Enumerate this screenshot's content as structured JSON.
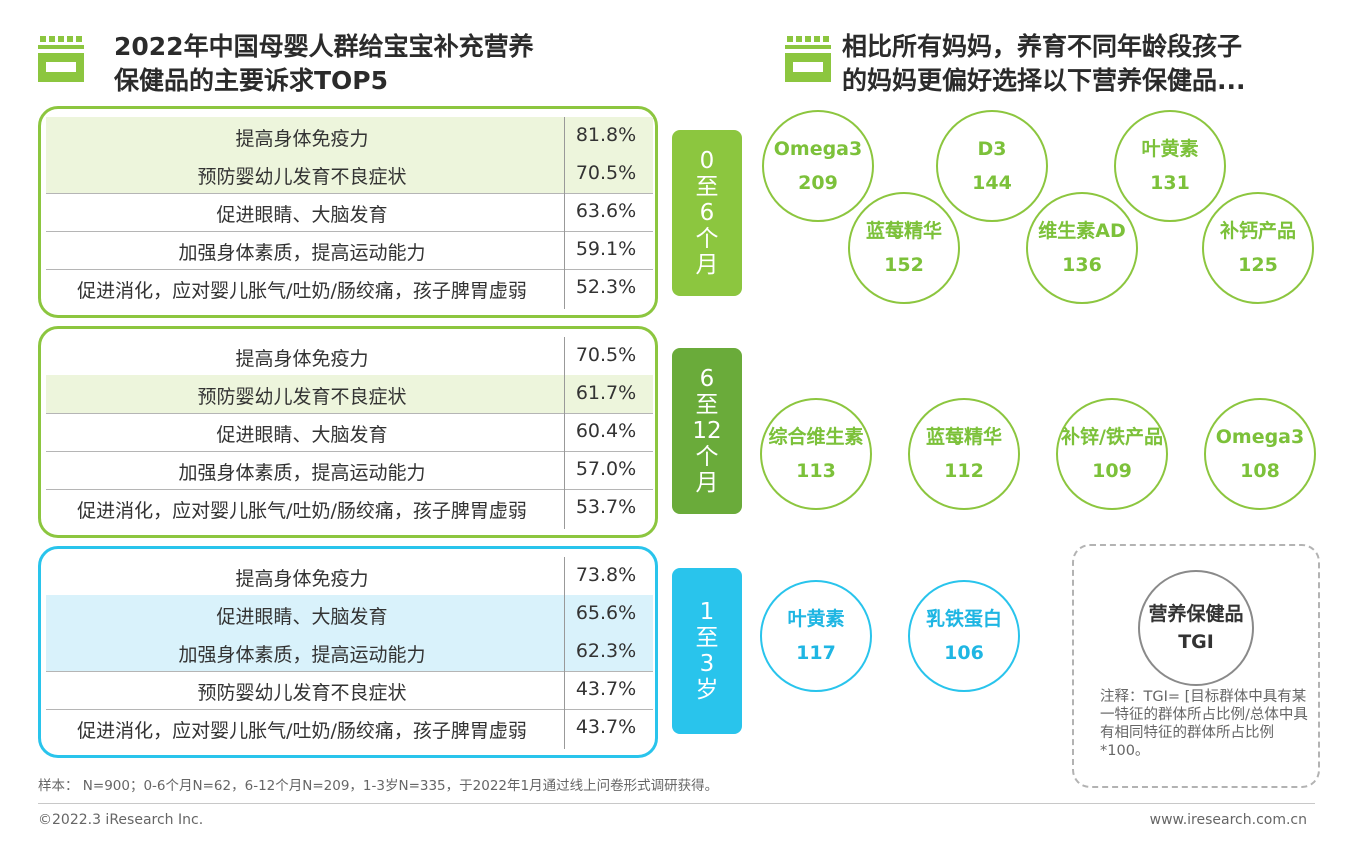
{
  "left_title": [
    "2022年中国母婴人群给宝宝补充营养",
    "保健品的主要诉求TOP5"
  ],
  "right_title": [
    "相比所有妈妈，养育不同年龄段孩子",
    "的妈妈更偏好选择以下营养保健品..."
  ],
  "colors": {
    "green": "#8cc63f",
    "dark_green": "#6aab3a",
    "blue": "#29c4ec",
    "row_highlight_green": "#edf5dc",
    "row_highlight_blue": "#d9f2fb"
  },
  "age_groups": [
    {
      "label": [
        "0",
        "至",
        "6",
        "个",
        "月"
      ],
      "rows": [
        {
          "label": "提高身体免疫力",
          "value": "81.8%"
        },
        {
          "label": "预防婴幼儿发育不良症状",
          "value": "70.5%"
        },
        {
          "label": "促进眼睛、大脑发育",
          "value": "63.6%"
        },
        {
          "label": "加强身体素质，提高运动能力",
          "value": "59.1%"
        },
        {
          "label": "促进消化，应对婴儿胀气/吐奶/肠绞痛，孩子脾胃虚弱",
          "value": "52.3%"
        }
      ],
      "bubbles": [
        {
          "name": "Omega3",
          "tgi": "209"
        },
        {
          "name": "D3",
          "tgi": "144"
        },
        {
          "name": "叶黄素",
          "tgi": "131"
        },
        {
          "name": "蓝莓精华",
          "tgi": "152"
        },
        {
          "name": "维生素AD",
          "tgi": "136"
        },
        {
          "name": "补钙产品",
          "tgi": "125"
        }
      ]
    },
    {
      "label": [
        "6",
        "至",
        "12",
        "个",
        "月"
      ],
      "rows": [
        {
          "label": "提高身体免疫力",
          "value": "70.5%"
        },
        {
          "label": "预防婴幼儿发育不良症状",
          "value": "61.7%"
        },
        {
          "label": "促进眼睛、大脑发育",
          "value": "60.4%"
        },
        {
          "label": "加强身体素质，提高运动能力",
          "value": "57.0%"
        },
        {
          "label": "促进消化，应对婴儿胀气/吐奶/肠绞痛，孩子脾胃虚弱",
          "value": "53.7%"
        }
      ],
      "bubbles": [
        {
          "name": "综合维生素",
          "tgi": "113"
        },
        {
          "name": "蓝莓精华",
          "tgi": "112"
        },
        {
          "name": "补锌/铁产品",
          "tgi": "109"
        },
        {
          "name": "Omega3",
          "tgi": "108"
        }
      ]
    },
    {
      "label": [
        "1",
        "至",
        "3",
        "岁"
      ],
      "rows": [
        {
          "label": "提高身体免疫力",
          "value": "73.8%"
        },
        {
          "label": "促进眼睛、大脑发育",
          "value": "65.6%"
        },
        {
          "label": "加强身体素质，提高运动能力",
          "value": "62.3%"
        },
        {
          "label": "预防婴幼儿发育不良症状",
          "value": "43.7%"
        },
        {
          "label": "促进消化，应对婴儿胀气/吐奶/肠绞痛，孩子脾胃虚弱",
          "value": "43.7%"
        }
      ],
      "bubbles": [
        {
          "name": "叶黄素",
          "tgi": "117"
        },
        {
          "name": "乳铁蛋白",
          "tgi": "106"
        }
      ]
    }
  ],
  "legend": {
    "circle_line1": "营养保健品",
    "circle_line2": "TGI",
    "note": "注释：TGI= [目标群体中具有某一特征的群体所占比例/总体中具有相同特征的群体所占比例*100。"
  },
  "footnote": "样本： N=900；0-6个月N=62，6-12个月N=209，1-3岁N=335，于2022年1月通过线上问卷形式调研获得。",
  "copyright": "©2022.3 iResearch Inc.",
  "website": "www.iresearch.com.cn",
  "chart_data": [
    {
      "type": "table",
      "title": "0至6个月",
      "categories": [
        "提高身体免疫力",
        "预防婴幼儿发育不良症状",
        "促进眼睛、大脑发育",
        "加强身体素质，提高运动能力",
        "促进消化，应对婴儿胀气/吐奶/肠绞痛，孩子脾胃虚弱"
      ],
      "values": [
        81.8,
        70.5,
        63.6,
        59.1,
        52.3
      ]
    },
    {
      "type": "table",
      "title": "6至12个月",
      "categories": [
        "提高身体免疫力",
        "预防婴幼儿发育不良症状",
        "促进眼睛、大脑发育",
        "加强身体素质，提高运动能力",
        "促进消化，应对婴儿胀气/吐奶/肠绞痛，孩子脾胃虚弱"
      ],
      "values": [
        70.5,
        61.7,
        60.4,
        57.0,
        53.7
      ]
    },
    {
      "type": "table",
      "title": "1至3岁",
      "categories": [
        "提高身体免疫力",
        "促进眼睛、大脑发育",
        "加强身体素质，提高运动能力",
        "预防婴幼儿发育不良症状",
        "促进消化，应对婴儿胀气/吐奶/肠绞痛，孩子脾胃虚弱"
      ],
      "values": [
        73.8,
        65.6,
        62.3,
        43.7,
        43.7
      ]
    }
  ]
}
